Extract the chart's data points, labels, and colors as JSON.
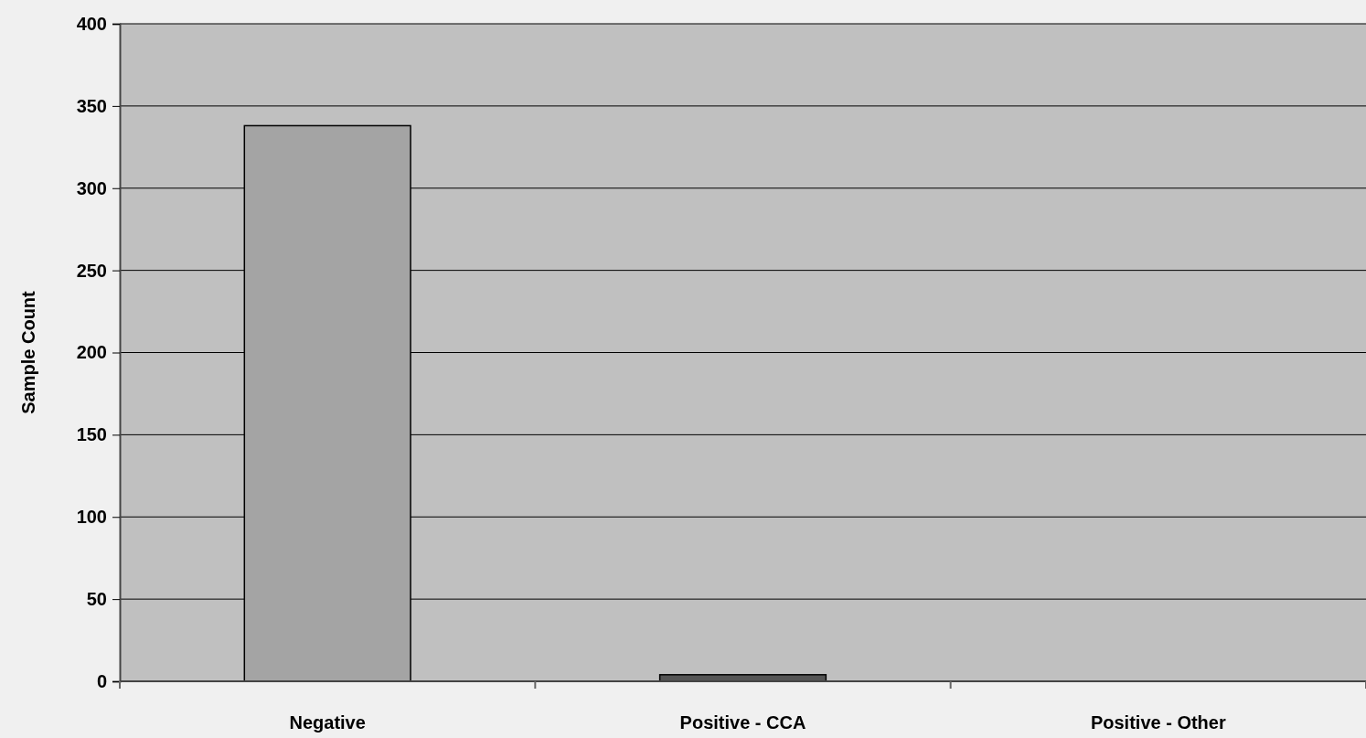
{
  "chart_data": {
    "type": "bar",
    "ylabel": "Sample Count",
    "categories": [
      "Negative",
      "Positive - CCA",
      "Positive - Other"
    ],
    "values": [
      338,
      4,
      0
    ],
    "colors": [
      "#a4a4a4",
      "#555555",
      "#555555"
    ],
    "ylim": [
      0,
      400
    ],
    "yticks": [
      0,
      50,
      100,
      150,
      200,
      250,
      300,
      350,
      400
    ],
    "grid": "y"
  }
}
